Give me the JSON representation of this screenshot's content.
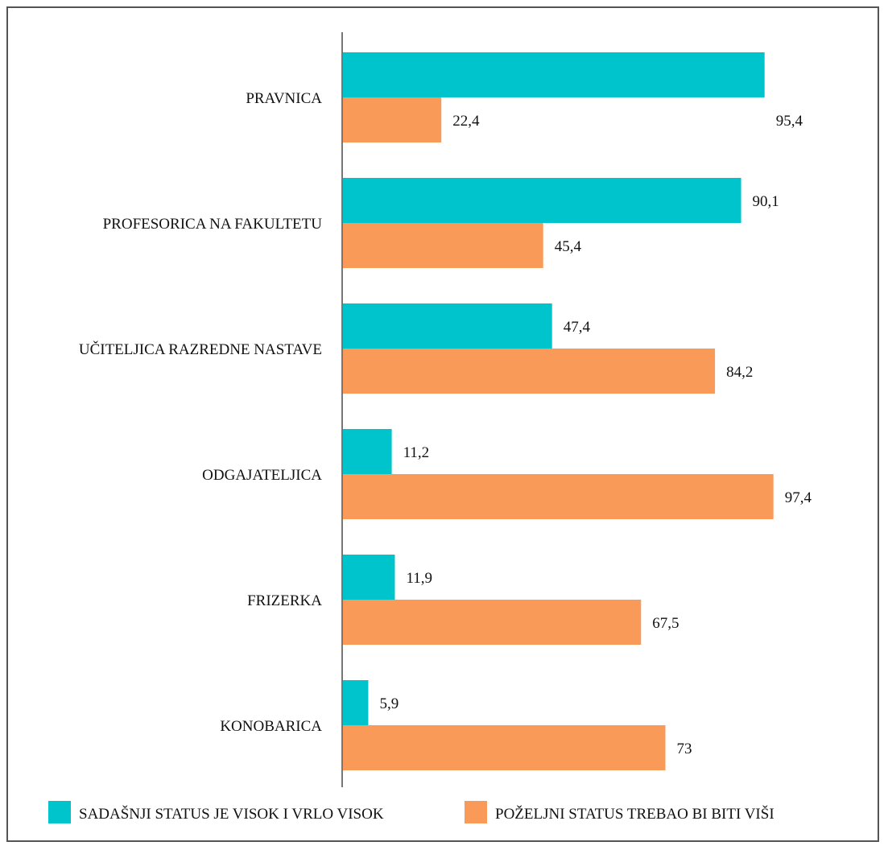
{
  "chart_data": {
    "type": "bar",
    "orientation": "horizontal",
    "categories": [
      "PRAVNICA",
      "PROFESORICA NA FAKULTETU",
      "UČITELJICA RAZREDNE NASTAVE",
      "ODGAJATELJICA",
      "FRIZERKA",
      "KONOBARICA"
    ],
    "series": [
      {
        "name": "SADAŠNJI STATUS JE VISOK I VRLO VISOK",
        "color": "#00c4cc",
        "values": [
          95.4,
          90.1,
          47.4,
          11.2,
          11.9,
          5.9
        ],
        "labels": [
          "95,4",
          "90,1",
          "47,4",
          "11,2",
          "11,9",
          "5,9"
        ]
      },
      {
        "name": "POŽELJNI STATUS TREBAO BI BITI VIŠI",
        "color": "#f99a58",
        "values": [
          22.4,
          45.4,
          84.2,
          97.4,
          67.5,
          73
        ],
        "labels": [
          "22,4",
          "45,4",
          "84,2",
          "97,4",
          "67,5",
          "73"
        ]
      }
    ],
    "xlim": [
      0,
      100
    ],
    "grid": false,
    "legend_position": "bottom",
    "axis_color": "#777777"
  }
}
